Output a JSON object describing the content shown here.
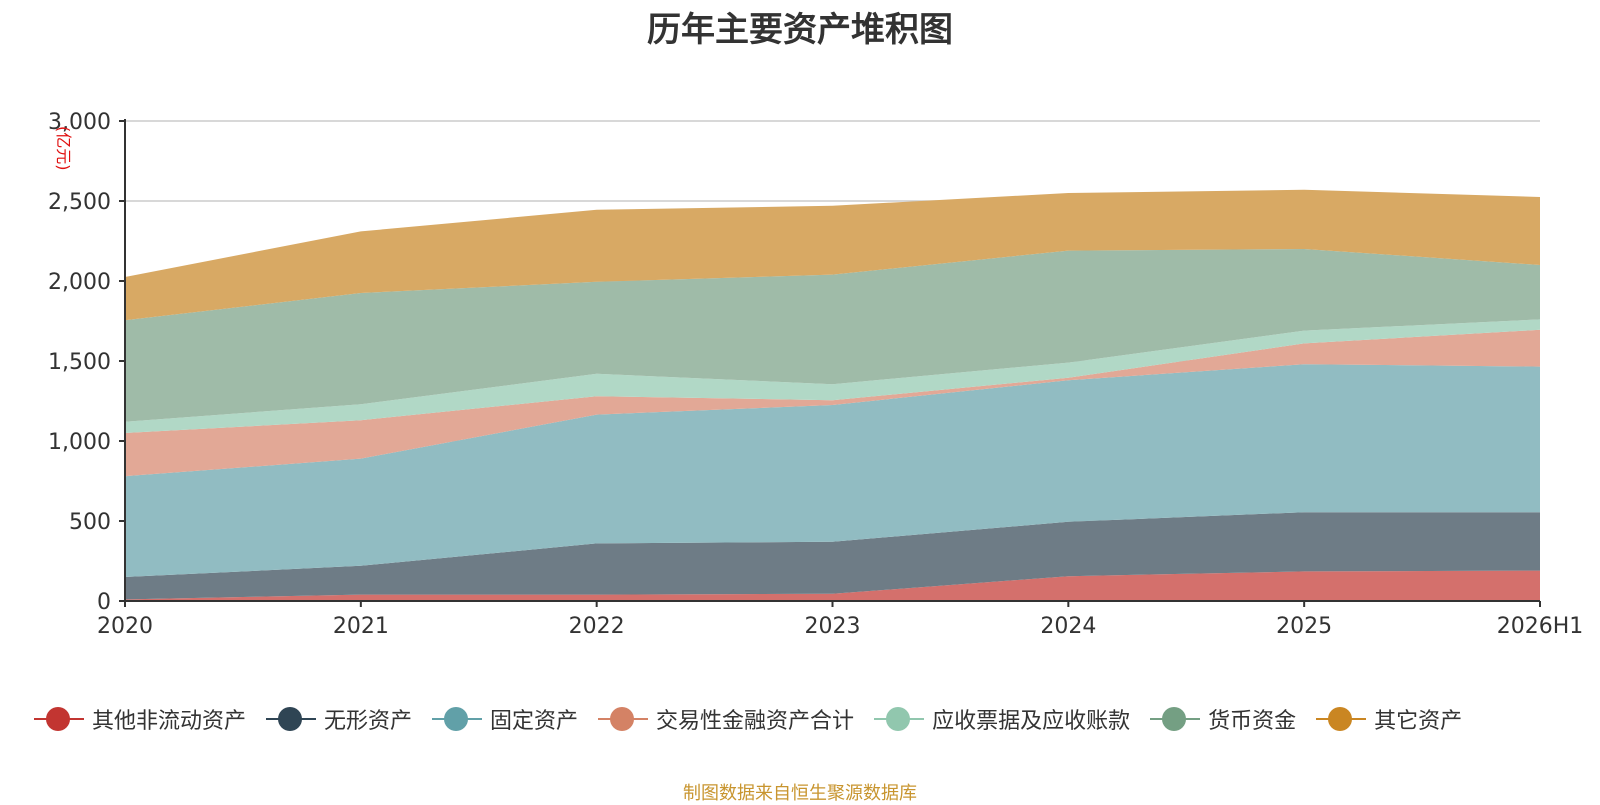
{
  "chart_data": {
    "type": "area",
    "stacked": true,
    "title": "历年主要资产堆积图",
    "ylabel": "亿元",
    "categories": [
      "2020",
      "2021",
      "2022",
      "2023",
      "2024",
      "2025",
      "2026H1"
    ],
    "ylim": [
      0,
      3000
    ],
    "yticks": [
      0,
      500,
      1000,
      1500,
      2000,
      2500,
      3000
    ],
    "ytick_labels": [
      "0",
      "500",
      "1,000",
      "1,500",
      "2,000",
      "2,500",
      "3,000"
    ],
    "grid": true,
    "legend_position": "bottom",
    "series": [
      {
        "name": "其他非流动资产",
        "color": "#c23531",
        "fill": "#d4706c",
        "values": [
          10,
          40,
          40,
          45,
          155,
          185,
          190
        ]
      },
      {
        "name": "无形资产",
        "color": "#2f4554",
        "fill": "#6e7c86",
        "values": [
          140,
          180,
          320,
          325,
          340,
          370,
          365
        ]
      },
      {
        "name": "固定资产",
        "color": "#61a0a8",
        "fill": "#91bcc2",
        "values": [
          630,
          670,
          805,
          855,
          885,
          925,
          910
        ]
      },
      {
        "name": "交易性金融资产合计",
        "color": "#d48265",
        "fill": "#e2a896",
        "values": [
          270,
          240,
          115,
          30,
          15,
          130,
          230
        ]
      },
      {
        "name": "应收票据及应收账款",
        "color": "#91c7ae",
        "fill": "#b1d8c6",
        "values": [
          70,
          100,
          140,
          100,
          95,
          80,
          65
        ]
      },
      {
        "name": "货币资金",
        "color": "#749f83",
        "fill": "#9fbba8",
        "values": [
          635,
          695,
          575,
          685,
          700,
          510,
          340
        ]
      },
      {
        "name": "其它资产",
        "color": "#ca8622",
        "fill": "#d8a964",
        "values": [
          270,
          385,
          450,
          430,
          360,
          370,
          425
        ]
      }
    ]
  },
  "source_note": "制图数据来自恒生聚源数据库"
}
